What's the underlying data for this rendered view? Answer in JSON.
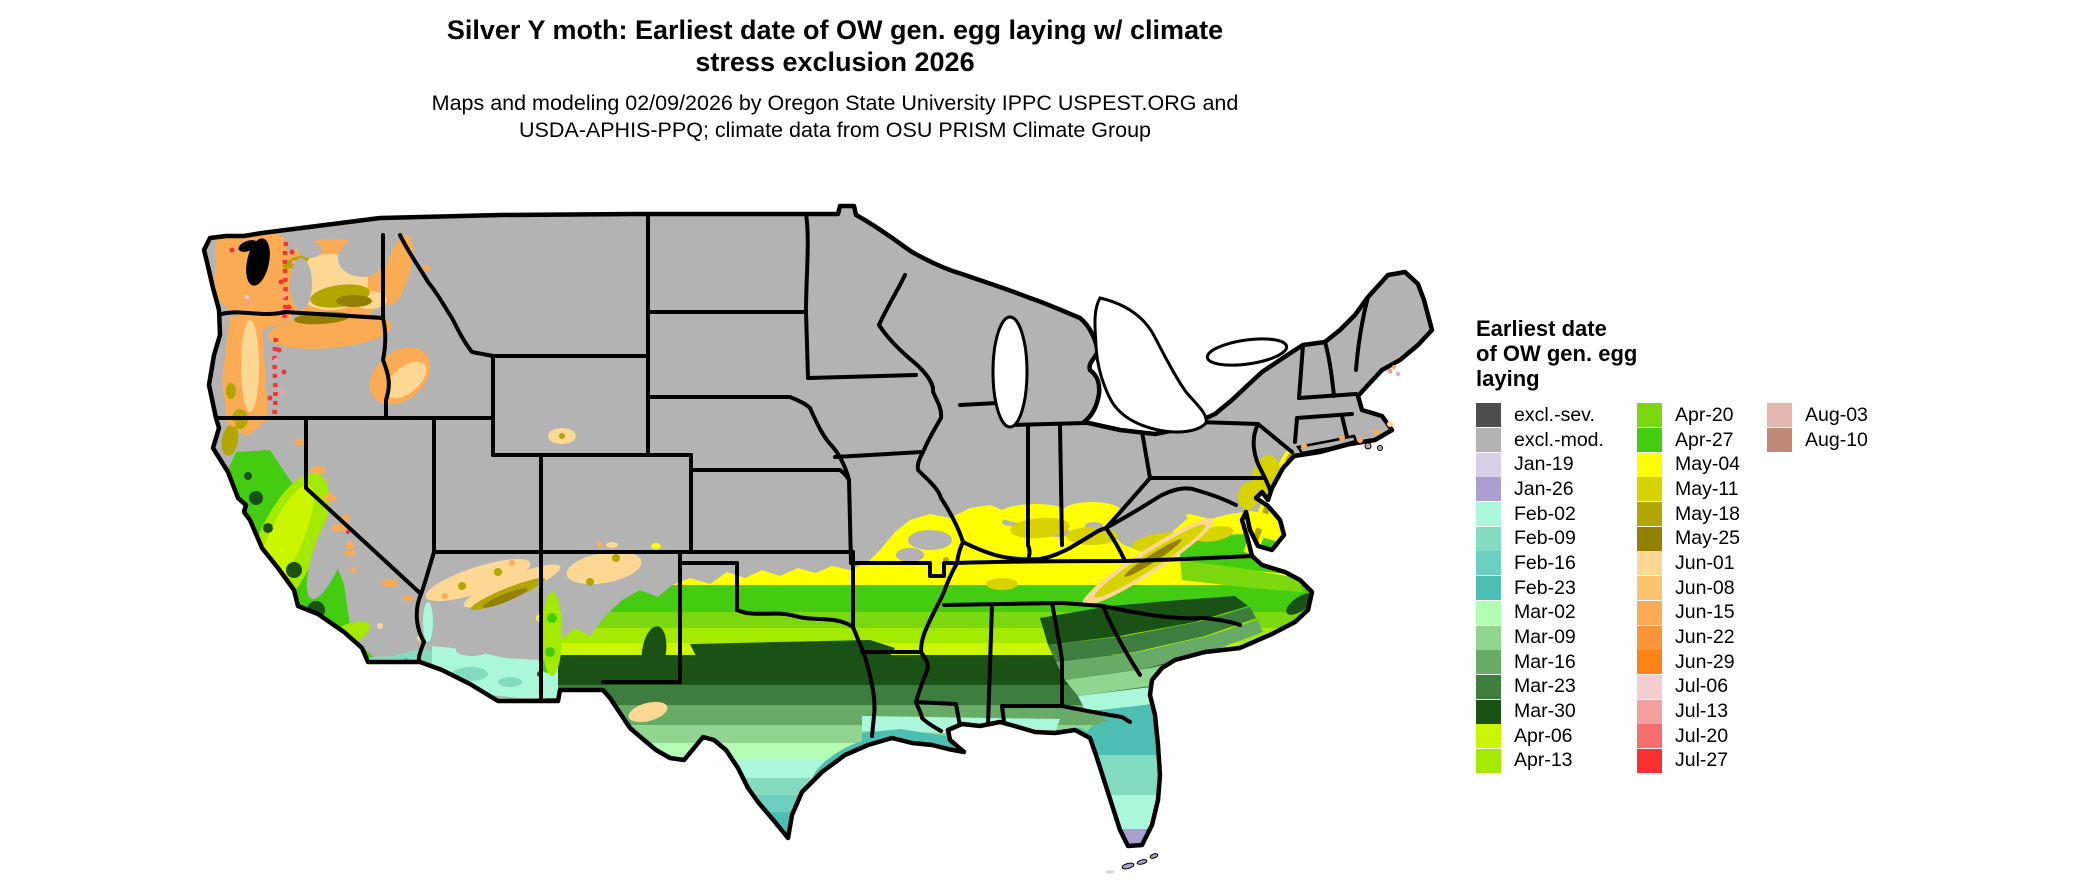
{
  "title": {
    "line1": "Silver Y moth: Earliest date of OW gen. egg laying w/ climate",
    "line2": "stress exclusion 2026"
  },
  "subtitle": {
    "line1": "Maps and modeling 02/09/2026 by Oregon State University IPPC USPEST.ORG and",
    "line2": "USDA-APHIS-PPQ; climate data from OSU PRISM Climate Group"
  },
  "legend": {
    "title_lines": [
      "Earliest date",
      "of OW gen. egg",
      "laying"
    ],
    "columns": [
      [
        {
          "label": "excl.-sev.",
          "color": "#4d4d4d"
        },
        {
          "label": "excl.-mod.",
          "color": "#b3b3b3"
        },
        {
          "label": "Jan-19",
          "color": "#d6d1e8"
        },
        {
          "label": "Jan-26",
          "color": "#ab9fd0"
        },
        {
          "label": "Feb-02",
          "color": "#aaf7dc"
        },
        {
          "label": "Feb-09",
          "color": "#84dcc0"
        },
        {
          "label": "Feb-16",
          "color": "#6ccfc0"
        },
        {
          "label": "Feb-23",
          "color": "#4dbfb2"
        },
        {
          "label": "Mar-02",
          "color": "#b3fcb3"
        },
        {
          "label": "Mar-09",
          "color": "#90d690"
        },
        {
          "label": "Mar-16",
          "color": "#67ab67"
        },
        {
          "label": "Mar-23",
          "color": "#3d7d3d"
        },
        {
          "label": "Mar-30",
          "color": "#1a5216"
        },
        {
          "label": "Apr-06",
          "color": "#ccf500"
        },
        {
          "label": "Apr-13",
          "color": "#a4ea00"
        }
      ],
      [
        {
          "label": "Apr-20",
          "color": "#7bd80e"
        },
        {
          "label": "Apr-27",
          "color": "#44cc11"
        },
        {
          "label": "May-04",
          "color": "#ffff00"
        },
        {
          "label": "May-11",
          "color": "#d8d200"
        },
        {
          "label": "May-18",
          "color": "#b3a600"
        },
        {
          "label": "May-25",
          "color": "#938000"
        },
        {
          "label": "Jun-01",
          "color": "#fcd894"
        },
        {
          "label": "Jun-08",
          "color": "#fcc46e"
        },
        {
          "label": "Jun-15",
          "color": "#fbab54"
        },
        {
          "label": "Jun-22",
          "color": "#fb9538"
        },
        {
          "label": "Jun-29",
          "color": "#fb8317"
        },
        {
          "label": "Jul-06",
          "color": "#f2ced1"
        },
        {
          "label": "Jul-13",
          "color": "#f2a0a0"
        },
        {
          "label": "Jul-20",
          "color": "#f56d6d"
        },
        {
          "label": "Jul-27",
          "color": "#fa3030"
        }
      ],
      [
        {
          "label": "Aug-03",
          "color": "#e4b7ae"
        },
        {
          "label": "Aug-10",
          "color": "#c08a77"
        }
      ]
    ]
  },
  "map": {
    "excluded_fill": "#b3b3b3",
    "border_color": "#000000",
    "water_color": "#ffffff"
  }
}
